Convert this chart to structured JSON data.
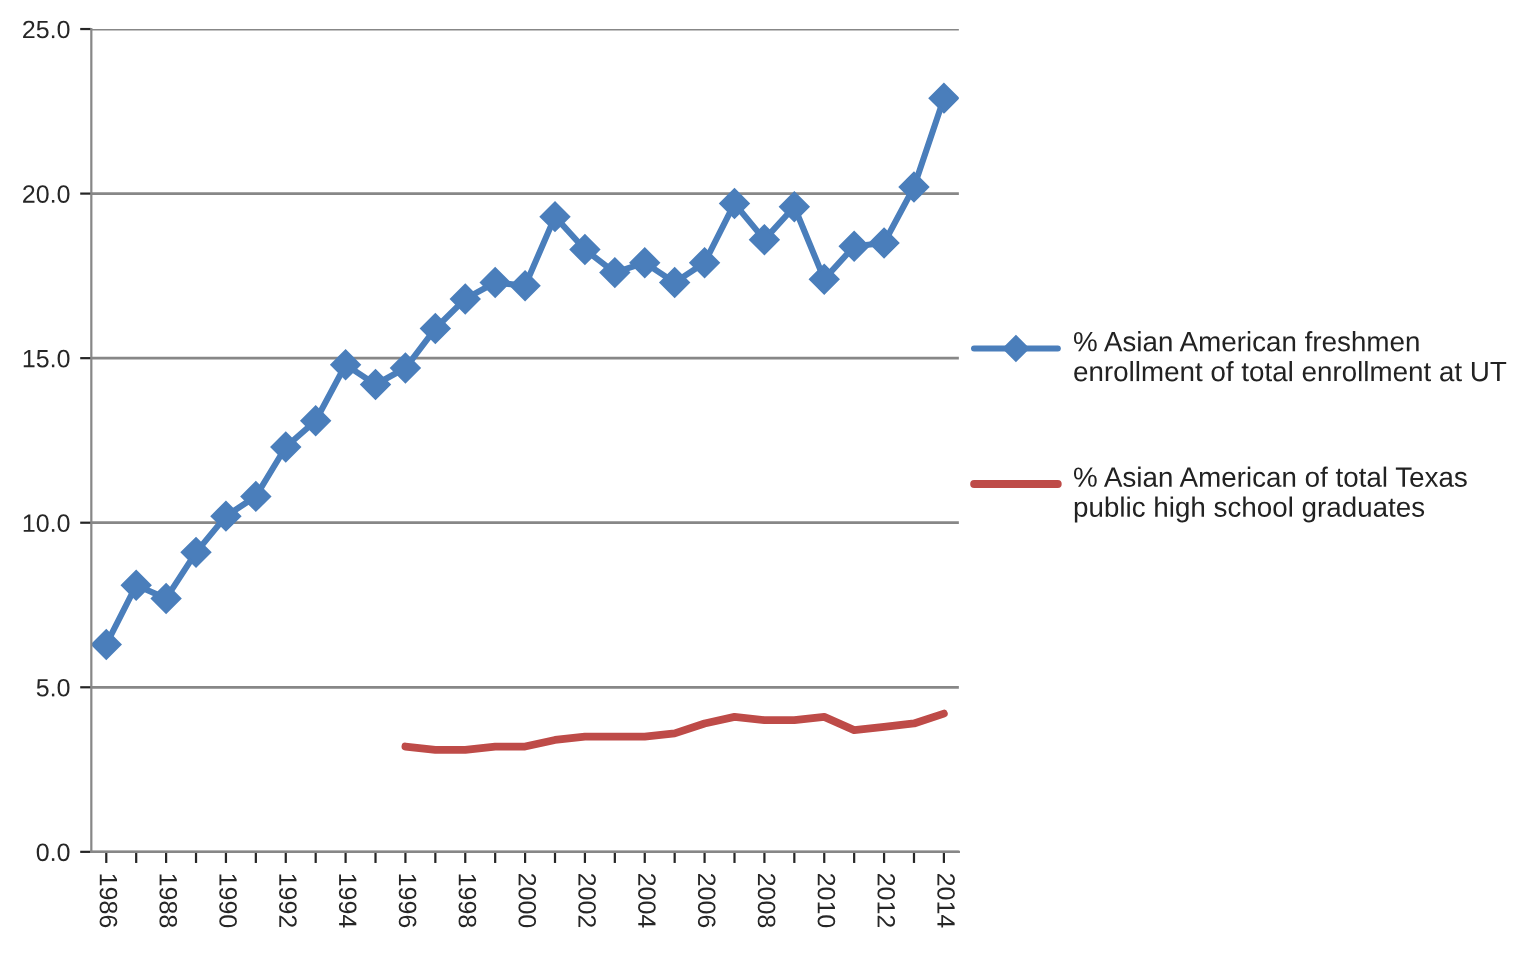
{
  "chart_data": {
    "type": "line",
    "categories": [
      "1986",
      null,
      "1988",
      null,
      "1990",
      null,
      "1992",
      null,
      "1994",
      null,
      "1996",
      null,
      "1998",
      null,
      "2000",
      null,
      "2002",
      null,
      "2004",
      null,
      "2006",
      null,
      "2008",
      null,
      "2010",
      null,
      "2012",
      null,
      "2014"
    ],
    "series": [
      {
        "name": "% Asian American freshmen enrollment of total enrollment at UT",
        "color": "#4a7ebb",
        "marker": "diamond",
        "values": [
          6.3,
          8.1,
          7.7,
          9.1,
          10.2,
          10.8,
          12.3,
          13.1,
          14.8,
          14.2,
          14.7,
          15.9,
          16.8,
          17.3,
          17.2,
          19.3,
          18.3,
          17.6,
          17.9,
          17.3,
          17.9,
          19.7,
          18.6,
          19.6,
          17.4,
          18.4,
          18.5,
          20.2,
          22.9
        ]
      },
      {
        "name": "% Asian American of total Texas public high school graduates",
        "color": "#be4b48",
        "marker": "none",
        "values": [
          null,
          null,
          null,
          null,
          null,
          null,
          null,
          null,
          null,
          null,
          3.2,
          3.1,
          3.1,
          3.2,
          3.2,
          3.4,
          3.5,
          3.5,
          3.5,
          3.6,
          3.9,
          4.1,
          4.0,
          4.0,
          4.1,
          3.7,
          3.8,
          3.9,
          4.2
        ]
      }
    ],
    "ylim": [
      0,
      25
    ],
    "yticks": [
      {
        "value": 0,
        "label": "0.0"
      },
      {
        "value": 5,
        "label": "5.0"
      },
      {
        "value": 10,
        "label": "10.0"
      },
      {
        "value": 15,
        "label": "15.0"
      },
      {
        "value": 20,
        "label": "20.0"
      },
      {
        "value": 25,
        "label": "25.0"
      }
    ],
    "grid": "y",
    "legend": "right",
    "line_style": "solid"
  }
}
